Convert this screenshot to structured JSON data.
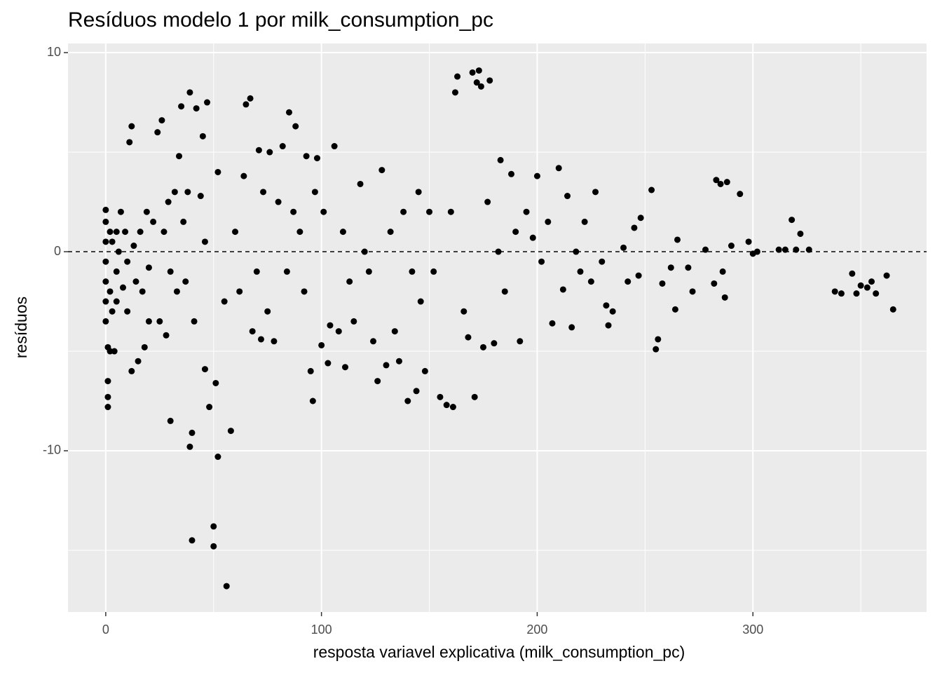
{
  "chart_data": {
    "type": "scatter",
    "title": "Resíduos modelo 1 por milk_consumption_pc",
    "x_label": "resposta variavel explicativa (milk_consumption_pc)",
    "y_label": "resíduos",
    "xlim": [
      -17.5,
      380.5
    ],
    "ylim": [
      -18.1,
      10.46
    ],
    "xticks": [
      0,
      100,
      200,
      300
    ],
    "yticks": [
      -10,
      0,
      10
    ],
    "x_minor_grid": [
      50,
      150,
      250,
      350
    ],
    "y_minor_grid": [
      -15,
      -5,
      5
    ],
    "grid": true,
    "hline": 0,
    "color": "#000000",
    "x": [
      0,
      0,
      0,
      0,
      0,
      0,
      0,
      1,
      1,
      1,
      1,
      2,
      2,
      2,
      3,
      3,
      4,
      5,
      5,
      5,
      6,
      7,
      8,
      9,
      10,
      10,
      11,
      12,
      12,
      13,
      14,
      15,
      16,
      17,
      18,
      19,
      20,
      20,
      22,
      24,
      25,
      26,
      27,
      28,
      29,
      30,
      30,
      32,
      33,
      34,
      35,
      36,
      37,
      38,
      39,
      39,
      40,
      40,
      41,
      42,
      44,
      45,
      46,
      46,
      47,
      48,
      50,
      50,
      51,
      52,
      52,
      55,
      56,
      58,
      60,
      62,
      64,
      65,
      67,
      68,
      70,
      71,
      72,
      73,
      75,
      76,
      78,
      80,
      82,
      84,
      85,
      87,
      88,
      90,
      92,
      93,
      95,
      96,
      97,
      98,
      100,
      101,
      103,
      104,
      106,
      108,
      110,
      111,
      113,
      115,
      118,
      120,
      122,
      124,
      126,
      128,
      130,
      132,
      134,
      136,
      138,
      140,
      142,
      144,
      145,
      146,
      148,
      150,
      152,
      155,
      158,
      160,
      161,
      162,
      163,
      166,
      168,
      170,
      171,
      172,
      173,
      174,
      175,
      177,
      178,
      180,
      182,
      183,
      185,
      188,
      190,
      192,
      195,
      198,
      200,
      202,
      205,
      207,
      210,
      212,
      214,
      216,
      218,
      220,
      222,
      225,
      227,
      230,
      232,
      233,
      235,
      240,
      242,
      245,
      247,
      248,
      253,
      255,
      256,
      258,
      262,
      264,
      265,
      270,
      272,
      278,
      282,
      283,
      285,
      286,
      287,
      288,
      290,
      294,
      298,
      300,
      302,
      312,
      315,
      318,
      320,
      322,
      326,
      338,
      341,
      346,
      348,
      350,
      353,
      355,
      357,
      362,
      365
    ],
    "values": [
      2.1,
      1.5,
      0.5,
      -0.5,
      -1.5,
      -2.5,
      -3.5,
      -4.8,
      -6.5,
      -7.3,
      -7.8,
      -5,
      1,
      -2,
      0.5,
      -3,
      -5,
      1,
      -1,
      -2.5,
      0,
      2,
      -1.8,
      1,
      -3,
      -0.5,
      5.5,
      6.3,
      -6,
      0.3,
      -1.5,
      -5.5,
      1,
      -2,
      -4.8,
      2,
      -3.5,
      -0.8,
      1.5,
      6,
      -3.5,
      6.6,
      1,
      -4.2,
      2.5,
      -1,
      -8.5,
      3,
      -2,
      4.8,
      7.3,
      1.5,
      -1.5,
      3,
      8,
      -9.8,
      -14.5,
      -9.1,
      -3.5,
      7.2,
      2.8,
      5.8,
      0.5,
      -5.9,
      7.5,
      -7.8,
      -13.8,
      -14.8,
      -6.6,
      -10.3,
      4,
      -2.5,
      -16.8,
      -9,
      1,
      -2,
      3.8,
      7.4,
      7.7,
      -4,
      -1,
      5.1,
      -4.4,
      3,
      -3,
      5,
      -4.5,
      2.5,
      5.3,
      -1,
      7,
      2,
      6.3,
      1,
      -2,
      4.8,
      -6,
      -7.5,
      3,
      4.7,
      -4.7,
      2,
      -5.6,
      -3.7,
      5.3,
      -4,
      1,
      -5.8,
      -1.5,
      -3.5,
      3.4,
      0,
      -1,
      -4.5,
      -6.5,
      4.1,
      -5.7,
      1,
      -4,
      -5.5,
      2,
      -7.5,
      -1,
      -7,
      3,
      -2.5,
      -6,
      2,
      -1,
      -7.3,
      -7.7,
      2,
      -7.8,
      8,
      8.8,
      -3,
      -4.3,
      9,
      -7.3,
      8.5,
      9.1,
      8.3,
      -4.8,
      2.5,
      8.6,
      -4.6,
      0,
      4.6,
      -2,
      3.9,
      1,
      -4.5,
      2,
      0.7,
      3.8,
      -0.5,
      1.5,
      -3.6,
      4.2,
      -1.9,
      2.8,
      -3.8,
      0,
      -1,
      1.5,
      -1.5,
      3,
      -0.5,
      -2.7,
      -3.7,
      -3,
      0.2,
      -1.5,
      1.2,
      -1.2,
      1.7,
      3.1,
      -4.9,
      -4.4,
      -1.6,
      -0.8,
      -2.9,
      0.6,
      -0.8,
      -2,
      0.1,
      -1.6,
      3.6,
      3.4,
      -1,
      -2.3,
      3.5,
      0.3,
      2.9,
      0.5,
      -0.1,
      0,
      0.1,
      0.1,
      1.6,
      0.1,
      0.9,
      0.1,
      -2,
      -2.1,
      -1.1,
      -2.1,
      -1.7,
      -1.8,
      -1.5,
      -2.1,
      -1.2,
      -2.9
    ]
  }
}
